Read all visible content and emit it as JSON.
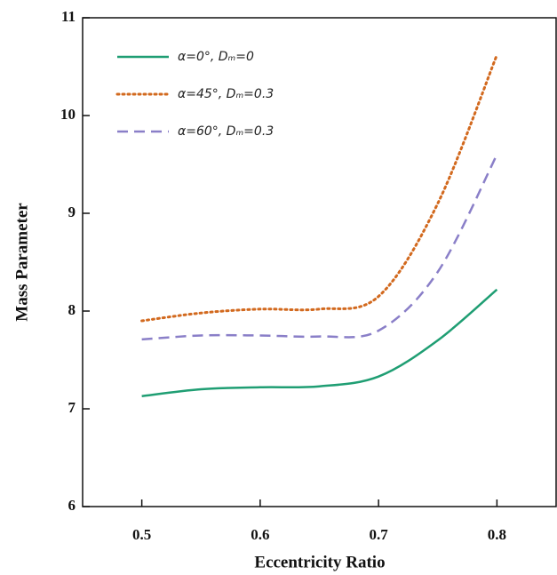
{
  "chart_data": {
    "type": "line",
    "x_label": "Eccentricity Ratio",
    "y_label": "Mass Parameter",
    "x": [
      0.5,
      0.55,
      0.6,
      0.65,
      0.7,
      0.75,
      0.8
    ],
    "series": [
      {
        "name": "α=0°, Dₘ=0",
        "color": "#1f9e73",
        "style": "solid",
        "values": [
          7.13,
          7.2,
          7.22,
          7.23,
          7.33,
          7.7,
          8.22
        ]
      },
      {
        "name": "α=45°, Dₘ=0.3",
        "color": "#d2691e",
        "style": "dotted",
        "values": [
          7.9,
          7.98,
          8.02,
          8.02,
          8.15,
          9.1,
          10.62
        ]
      },
      {
        "name": "α=60°, Dₘ=0.3",
        "color": "#8a7fc8",
        "style": "dashed",
        "values": [
          7.71,
          7.75,
          7.75,
          7.74,
          7.8,
          8.4,
          9.6
        ]
      }
    ],
    "xlim": [
      0.45,
      0.85
    ],
    "xticks": [
      0.5,
      0.6,
      0.7,
      0.8
    ],
    "ylim": [
      6,
      11
    ],
    "yticks": [
      6,
      7,
      8,
      9,
      10,
      11
    ]
  }
}
